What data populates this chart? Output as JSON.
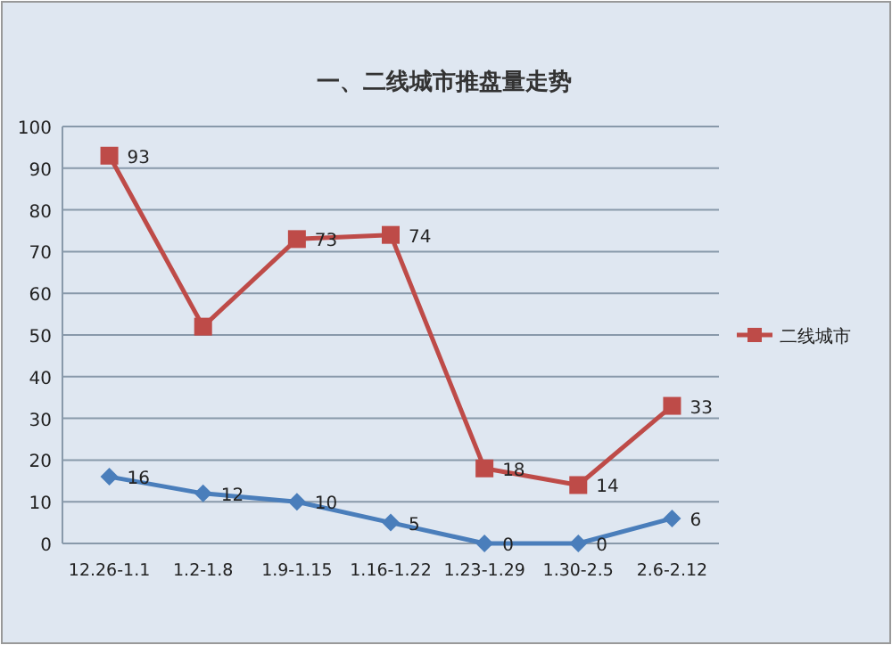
{
  "chart_data": {
    "type": "line",
    "title": "一、二线城市推盘量走势",
    "categories": [
      "12.26-1.1",
      "1.2-1.8",
      "1.9-1.15",
      "1.16-1.22",
      "1.23-1.29",
      "1.30-2.5",
      "2.6-2.12"
    ],
    "series": [
      {
        "color": "#4a7ebb",
        "marker": "diamond",
        "values": [
          16,
          12,
          10,
          5,
          0,
          0,
          6
        ],
        "value_labels": [
          "16",
          "12",
          "10",
          "5",
          "0",
          "0",
          "6"
        ]
      },
      {
        "name": "二线城市",
        "color": "#be4b48",
        "marker": "square",
        "values": [
          93,
          52,
          73,
          74,
          18,
          14,
          33
        ],
        "value_labels": [
          "93",
          null,
          "73",
          "74",
          "18",
          "14",
          "33"
        ]
      }
    ],
    "ylim": [
      0,
      100
    ],
    "yticks": [
      0,
      10,
      20,
      30,
      40,
      50,
      60,
      70,
      80,
      90,
      100
    ],
    "grid": "y",
    "legend": "right"
  }
}
